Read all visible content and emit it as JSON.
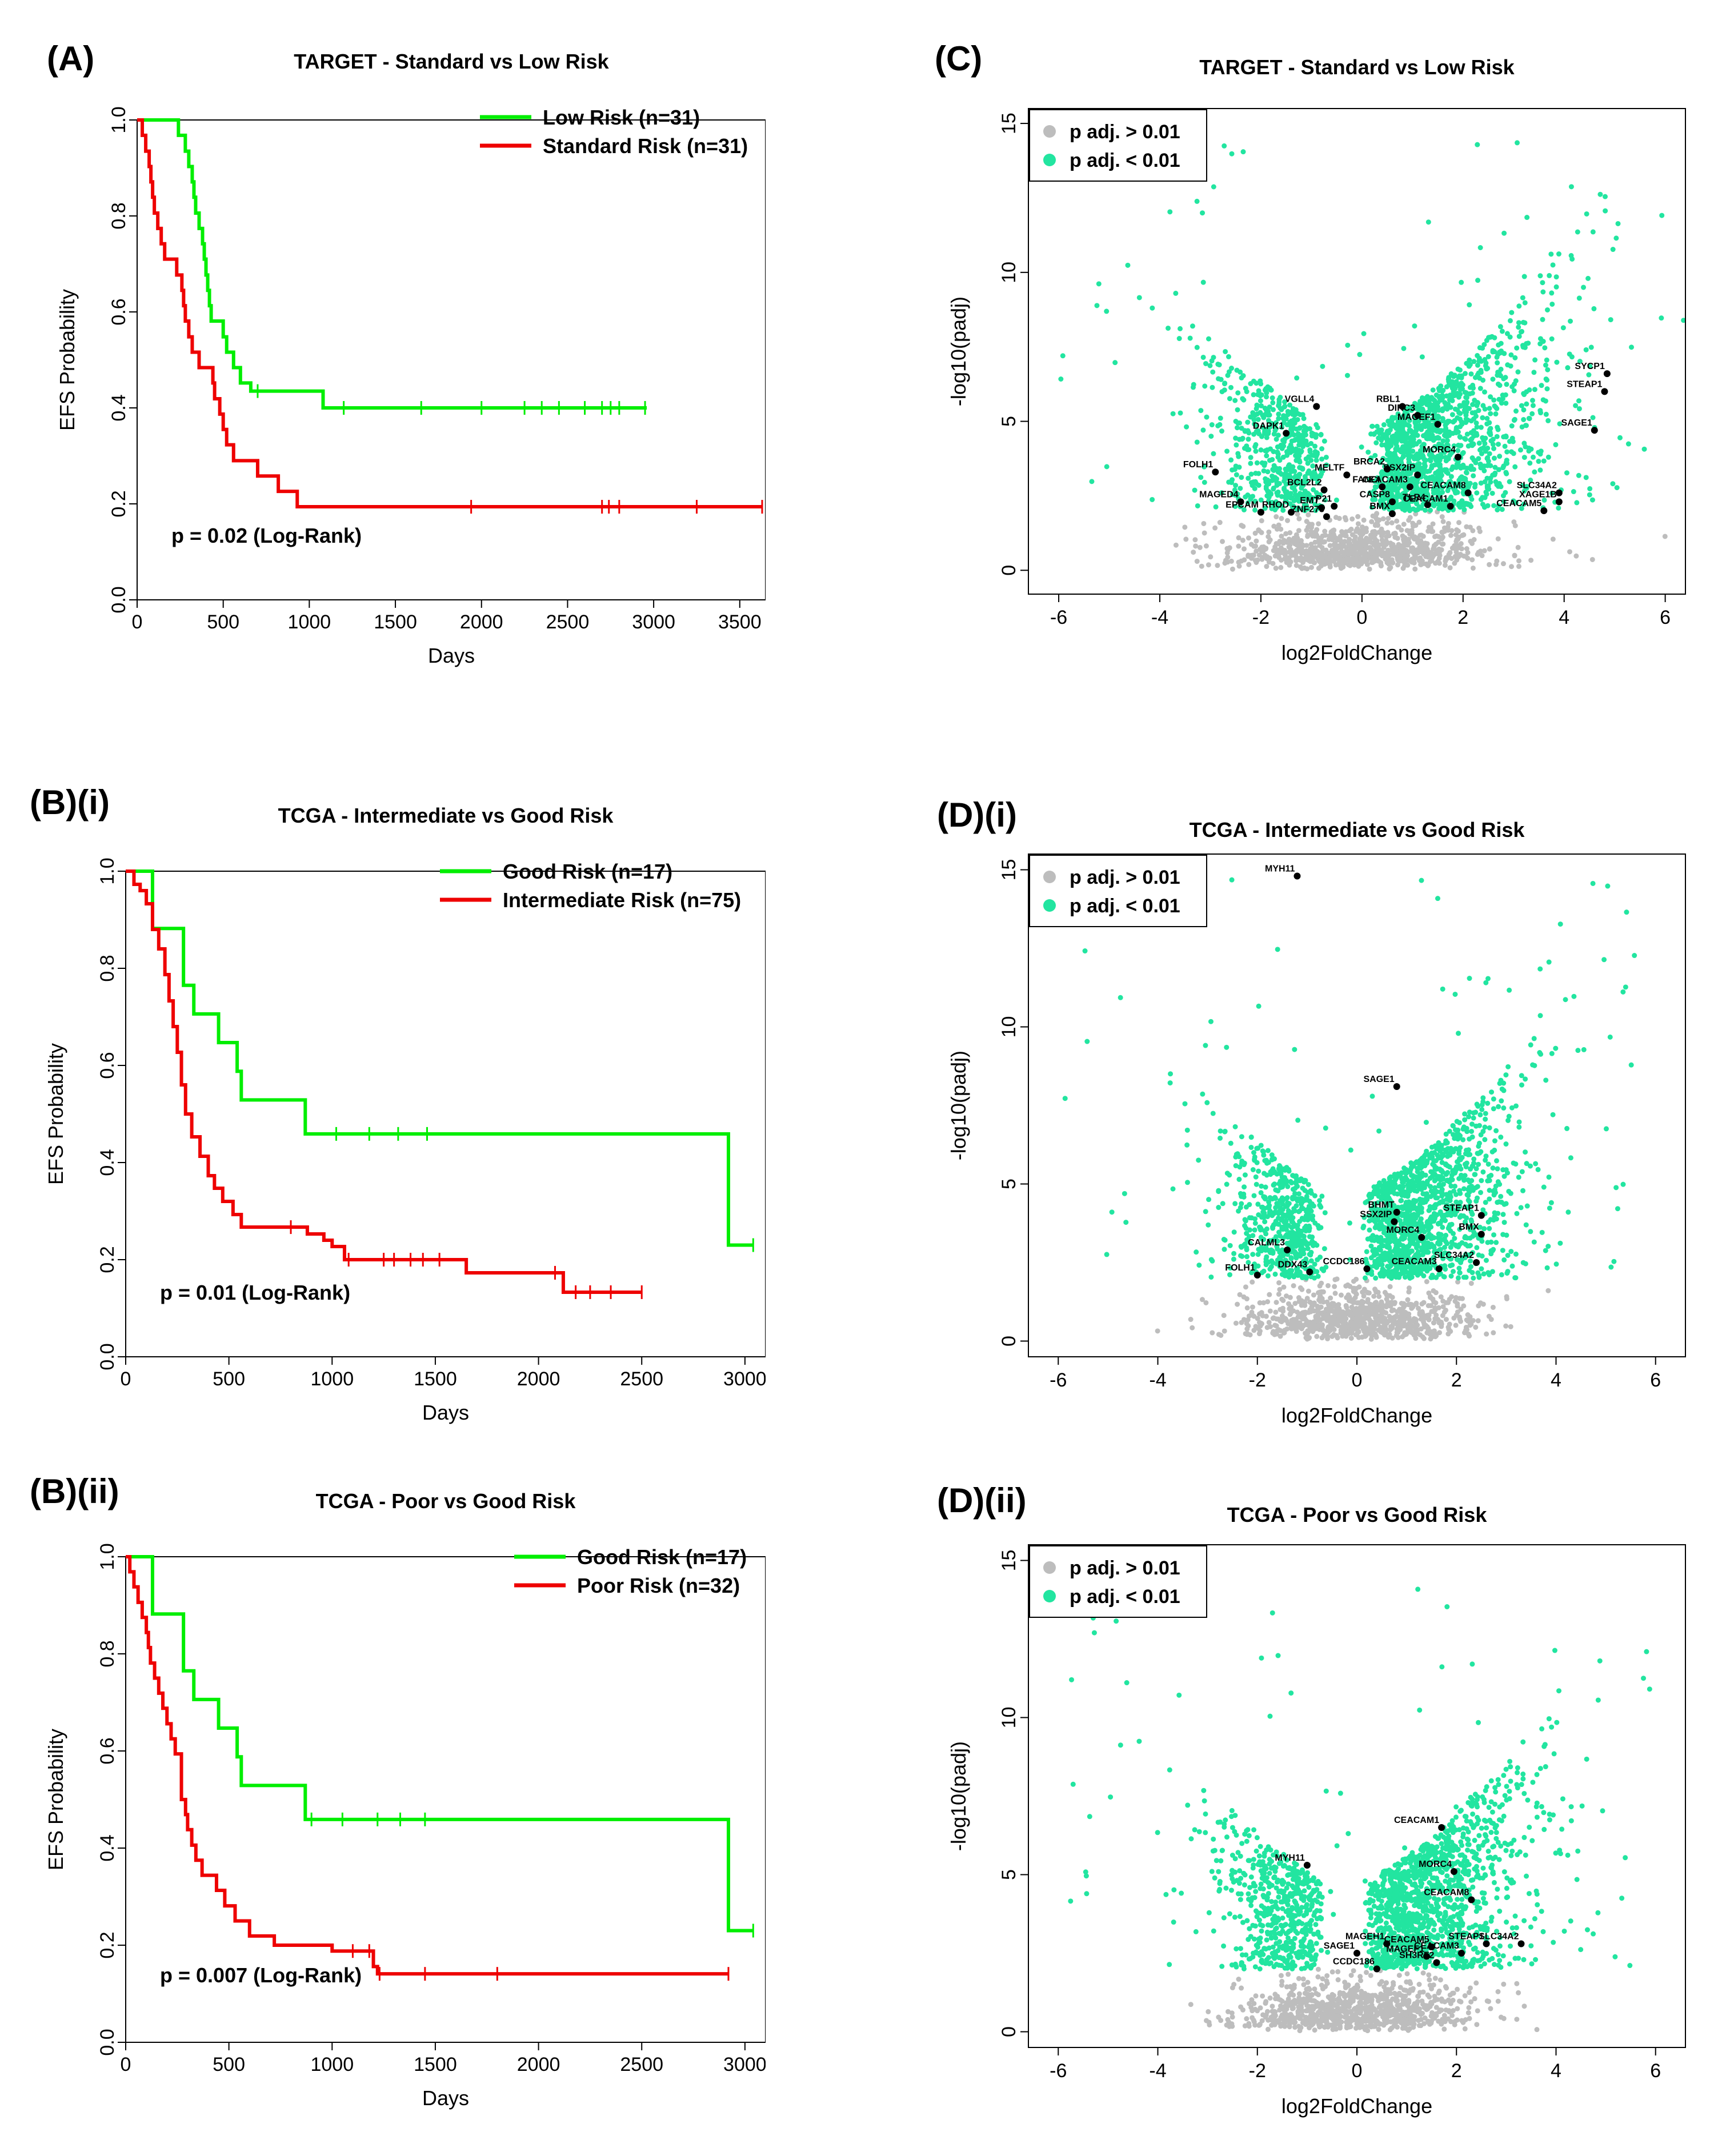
{
  "figure": {
    "panels": [
      {
        "label": "(A)"
      },
      {
        "label": "(C)"
      },
      {
        "label": "(B)(i)"
      },
      {
        "label": "(D)(i)"
      },
      {
        "label": "(B)(ii)"
      },
      {
        "label": "(D)(ii)"
      }
    ]
  },
  "colors": {
    "green": "#00ee00",
    "red": "#ee0000",
    "teal": "#22e5a0",
    "gray": "#bdbdbd",
    "black": "#000000"
  },
  "chart_data": [
    {
      "id": "A",
      "type": "line",
      "title": "TARGET - Standard vs Low Risk",
      "xlabel": "Days",
      "ylabel": "EFS Probability",
      "xlim": [
        0,
        3650
      ],
      "ylim": [
        0,
        1
      ],
      "xticks": [
        0,
        500,
        1000,
        1500,
        2000,
        2500,
        3000,
        3500
      ],
      "yticks": [
        0.0,
        0.2,
        0.4,
        0.6,
        0.8,
        1.0
      ],
      "ytick_labels": [
        "0.0",
        "0.2",
        "0.4",
        "0.6",
        "0.8",
        "1.0"
      ],
      "annotation": "p = 0.02 (Log-Rank)",
      "series": [
        {
          "name": "Low Risk (n=31)",
          "color": "#00ee00",
          "steps": [
            [
              0,
              1.0
            ],
            [
              120,
              1.0
            ],
            [
              240,
              0.968
            ],
            [
              280,
              0.935
            ],
            [
              300,
              0.903
            ],
            [
              320,
              0.871
            ],
            [
              330,
              0.839
            ],
            [
              340,
              0.806
            ],
            [
              360,
              0.774
            ],
            [
              380,
              0.742
            ],
            [
              390,
              0.71
            ],
            [
              400,
              0.677
            ],
            [
              410,
              0.645
            ],
            [
              420,
              0.613
            ],
            [
              430,
              0.581
            ],
            [
              500,
              0.548
            ],
            [
              520,
              0.516
            ],
            [
              560,
              0.484
            ],
            [
              600,
              0.452
            ],
            [
              660,
              0.435
            ],
            [
              1080,
              0.4
            ],
            [
              2960,
              0.4
            ]
          ],
          "censor": [
            700,
            1200,
            1650,
            2000,
            2250,
            2350,
            2450,
            2600,
            2700,
            2750,
            2800,
            2950
          ]
        },
        {
          "name": "Standard Risk (n=31)",
          "color": "#ee0000",
          "steps": [
            [
              0,
              1.0
            ],
            [
              30,
              0.968
            ],
            [
              50,
              0.935
            ],
            [
              70,
              0.903
            ],
            [
              80,
              0.871
            ],
            [
              90,
              0.839
            ],
            [
              100,
              0.806
            ],
            [
              120,
              0.774
            ],
            [
              140,
              0.742
            ],
            [
              160,
              0.71
            ],
            [
              230,
              0.677
            ],
            [
              260,
              0.645
            ],
            [
              270,
              0.613
            ],
            [
              280,
              0.581
            ],
            [
              300,
              0.548
            ],
            [
              320,
              0.516
            ],
            [
              360,
              0.484
            ],
            [
              440,
              0.452
            ],
            [
              450,
              0.419
            ],
            [
              480,
              0.387
            ],
            [
              500,
              0.355
            ],
            [
              520,
              0.323
            ],
            [
              560,
              0.29
            ],
            [
              700,
              0.258
            ],
            [
              820,
              0.226
            ],
            [
              930,
              0.194
            ],
            [
              3630,
              0.194
            ]
          ],
          "censor": [
            1940,
            2700,
            2740,
            2800,
            3250,
            3630
          ]
        }
      ]
    },
    {
      "id": "C",
      "type": "scatter",
      "title": "TARGET - Standard vs Low Risk",
      "xlabel": "log2FoldChange",
      "ylabel": "-log10(padj)",
      "xlim": [
        -6.6,
        6.4
      ],
      "ylim": [
        -0.8,
        15.5
      ],
      "xticks": [
        -6,
        -4,
        -2,
        0,
        2,
        4,
        6
      ],
      "yticks": [
        0,
        5,
        10,
        15
      ],
      "legend": [
        "p adj. > 0.01",
        "p adj. < 0.01"
      ],
      "seed": 11,
      "spread": 1.0,
      "labeled_genes": [
        {
          "name": "SYCP1",
          "x": 4.85,
          "y": 6.6
        },
        {
          "name": "STEAP1",
          "x": 4.8,
          "y": 6.0
        },
        {
          "name": "SAGE1",
          "x": 4.6,
          "y": 4.7
        },
        {
          "name": "SLC34A2",
          "x": 3.9,
          "y": 2.6
        },
        {
          "name": "XAGE1B",
          "x": 3.9,
          "y": 2.3
        },
        {
          "name": "CEACAM5",
          "x": 3.6,
          "y": 2.0
        },
        {
          "name": "CEACAM8",
          "x": 2.1,
          "y": 2.6
        },
        {
          "name": "CEACAM1",
          "x": 1.75,
          "y": 2.15
        },
        {
          "name": "RBL1",
          "x": 0.8,
          "y": 5.5
        },
        {
          "name": "DIRC3",
          "x": 1.1,
          "y": 5.2
        },
        {
          "name": "MAGEF1",
          "x": 1.5,
          "y": 4.9
        },
        {
          "name": "MORC4",
          "x": 1.9,
          "y": 3.8
        },
        {
          "name": "BRCA2",
          "x": 0.5,
          "y": 3.4
        },
        {
          "name": "SSX2IP",
          "x": 1.1,
          "y": 3.2
        },
        {
          "name": "FANCI",
          "x": 0.4,
          "y": 2.8
        },
        {
          "name": "CEACAM3",
          "x": 0.95,
          "y": 2.8
        },
        {
          "name": "CASP8",
          "x": 0.6,
          "y": 2.3
        },
        {
          "name": "TLR4",
          "x": 1.3,
          "y": 2.2
        },
        {
          "name": "BMX",
          "x": 0.6,
          "y": 1.9
        },
        {
          "name": "VGLL4",
          "x": -0.9,
          "y": 5.5
        },
        {
          "name": "DAPK1",
          "x": -1.5,
          "y": 4.6
        },
        {
          "name": "MELTF",
          "x": -0.3,
          "y": 3.2
        },
        {
          "name": "BCL2L2",
          "x": -0.75,
          "y": 2.7
        },
        {
          "name": "FOLH1",
          "x": -2.9,
          "y": 3.3
        },
        {
          "name": "MAGED4",
          "x": -2.4,
          "y": 2.3
        },
        {
          "name": "EPCAM",
          "x": -2.0,
          "y": 1.95
        },
        {
          "name": "RHOD",
          "x": -1.4,
          "y": 1.95
        },
        {
          "name": "EMT",
          "x": -0.8,
          "y": 2.1
        },
        {
          "name": "P21",
          "x": -0.55,
          "y": 2.15
        },
        {
          "name": "ZNF275",
          "x": -0.7,
          "y": 1.8
        }
      ]
    },
    {
      "id": "Bi",
      "type": "line",
      "title": "TCGA - Intermediate vs Good Risk",
      "xlabel": "Days",
      "ylabel": "EFS Probability",
      "xlim": [
        0,
        3100
      ],
      "ylim": [
        0,
        1
      ],
      "xticks": [
        0,
        500,
        1000,
        1500,
        2000,
        2500,
        3000
      ],
      "yticks": [
        0.0,
        0.2,
        0.4,
        0.6,
        0.8,
        1.0
      ],
      "ytick_labels": [
        "0.0",
        "0.2",
        "0.4",
        "0.6",
        "0.8",
        "1.0"
      ],
      "annotation": "p = 0.01 (Log-Rank)",
      "series": [
        {
          "name": "Good Risk (n=17)",
          "color": "#00ee00",
          "steps": [
            [
              0,
              1.0
            ],
            [
              130,
              0.882
            ],
            [
              280,
              0.765
            ],
            [
              330,
              0.706
            ],
            [
              450,
              0.647
            ],
            [
              540,
              0.588
            ],
            [
              560,
              0.529
            ],
            [
              870,
              0.459
            ],
            [
              2920,
              0.459
            ],
            [
              2920,
              0.23
            ],
            [
              3040,
              0.23
            ]
          ],
          "censor": [
            1020,
            1180,
            1320,
            1460,
            3040
          ]
        },
        {
          "name": "Intermediate Risk (n=75)",
          "color": "#ee0000",
          "steps": [
            [
              0,
              1.0
            ],
            [
              40,
              0.973
            ],
            [
              70,
              0.96
            ],
            [
              100,
              0.933
            ],
            [
              130,
              0.88
            ],
            [
              160,
              0.84
            ],
            [
              190,
              0.787
            ],
            [
              210,
              0.733
            ],
            [
              230,
              0.68
            ],
            [
              250,
              0.627
            ],
            [
              270,
              0.56
            ],
            [
              290,
              0.5
            ],
            [
              320,
              0.453
            ],
            [
              360,
              0.413
            ],
            [
              400,
              0.373
            ],
            [
              430,
              0.347
            ],
            [
              470,
              0.32
            ],
            [
              520,
              0.293
            ],
            [
              560,
              0.267
            ],
            [
              880,
              0.253
            ],
            [
              960,
              0.24
            ],
            [
              1000,
              0.227
            ],
            [
              1060,
              0.2
            ],
            [
              1650,
              0.173
            ],
            [
              2120,
              0.133
            ],
            [
              2500,
              0.133
            ]
          ],
          "censor": [
            800,
            1080,
            1250,
            1300,
            1380,
            1440,
            1520,
            2080,
            2180,
            2250,
            2350,
            2500
          ]
        }
      ]
    },
    {
      "id": "Di",
      "type": "scatter",
      "title": "TCGA - Intermediate vs Good Risk",
      "xlabel": "log2FoldChange",
      "ylabel": "-log10(padj)",
      "xlim": [
        -6.6,
        6.6
      ],
      "ylim": [
        -0.5,
        15.5
      ],
      "xticks": [
        -6,
        -4,
        -2,
        0,
        2,
        4,
        6
      ],
      "yticks": [
        0,
        5,
        10,
        15
      ],
      "legend": [
        "p adj. > 0.01",
        "p adj. < 0.01"
      ],
      "seed": 27,
      "spread": 0.85,
      "labeled_genes": [
        {
          "name": "MYH11",
          "x": -1.2,
          "y": 14.8
        },
        {
          "name": "SAGE1",
          "x": 0.8,
          "y": 8.1
        },
        {
          "name": "BHMT",
          "x": 0.8,
          "y": 4.1
        },
        {
          "name": "SSX2IP",
          "x": 0.75,
          "y": 3.8
        },
        {
          "name": "STEAP1",
          "x": 2.5,
          "y": 4.0
        },
        {
          "name": "BMX",
          "x": 2.5,
          "y": 3.4
        },
        {
          "name": "MORC4",
          "x": 1.3,
          "y": 3.3
        },
        {
          "name": "SLC34A2",
          "x": 2.4,
          "y": 2.5
        },
        {
          "name": "CEACAM3",
          "x": 1.65,
          "y": 2.3
        },
        {
          "name": "CCDC186",
          "x": 0.2,
          "y": 2.3
        },
        {
          "name": "DDX43",
          "x": -0.95,
          "y": 2.2
        },
        {
          "name": "CALML3",
          "x": -1.4,
          "y": 2.9
        },
        {
          "name": "FOLH1",
          "x": -2.0,
          "y": 2.1
        }
      ]
    },
    {
      "id": "Bii",
      "type": "line",
      "title": "TCGA - Poor vs Good Risk",
      "xlabel": "Days",
      "ylabel": "EFS Probability",
      "xlim": [
        0,
        3100
      ],
      "ylim": [
        0,
        1
      ],
      "xticks": [
        0,
        500,
        1000,
        1500,
        2000,
        2500,
        3000
      ],
      "yticks": [
        0.0,
        0.2,
        0.4,
        0.6,
        0.8,
        1.0
      ],
      "ytick_labels": [
        "0.0",
        "0.2",
        "0.4",
        "0.6",
        "0.8",
        "1.0"
      ],
      "annotation": "p = 0.007 (Log-Rank)",
      "series": [
        {
          "name": "Good Risk (n=17)",
          "color": "#00ee00",
          "steps": [
            [
              0,
              1.0
            ],
            [
              130,
              0.882
            ],
            [
              280,
              0.765
            ],
            [
              330,
              0.706
            ],
            [
              450,
              0.647
            ],
            [
              540,
              0.588
            ],
            [
              560,
              0.529
            ],
            [
              870,
              0.459
            ],
            [
              2920,
              0.459
            ],
            [
              2920,
              0.23
            ],
            [
              3040,
              0.23
            ]
          ],
          "censor": [
            900,
            1050,
            1220,
            1330,
            1450,
            3040
          ]
        },
        {
          "name": "Poor Risk (n=32)",
          "color": "#ee0000",
          "steps": [
            [
              0,
              1.0
            ],
            [
              20,
              0.969
            ],
            [
              40,
              0.938
            ],
            [
              60,
              0.906
            ],
            [
              80,
              0.875
            ],
            [
              100,
              0.844
            ],
            [
              110,
              0.813
            ],
            [
              120,
              0.781
            ],
            [
              140,
              0.75
            ],
            [
              160,
              0.719
            ],
            [
              180,
              0.688
            ],
            [
              200,
              0.656
            ],
            [
              220,
              0.625
            ],
            [
              240,
              0.594
            ],
            [
              270,
              0.5
            ],
            [
              290,
              0.469
            ],
            [
              300,
              0.438
            ],
            [
              320,
              0.406
            ],
            [
              340,
              0.375
            ],
            [
              370,
              0.344
            ],
            [
              440,
              0.313
            ],
            [
              480,
              0.281
            ],
            [
              530,
              0.25
            ],
            [
              600,
              0.219
            ],
            [
              720,
              0.2
            ],
            [
              1000,
              0.188
            ],
            [
              1200,
              0.156
            ],
            [
              1220,
              0.141
            ],
            [
              2920,
              0.141
            ]
          ],
          "censor": [
            1100,
            1180,
            1230,
            1450,
            1800,
            2920
          ]
        }
      ]
    },
    {
      "id": "Dii",
      "type": "scatter",
      "title": "TCGA - Poor vs Good Risk",
      "xlabel": "log2FoldChange",
      "ylabel": "-log10(padj)",
      "xlim": [
        -6.6,
        6.6
      ],
      "ylim": [
        -0.5,
        15.5
      ],
      "xticks": [
        -6,
        -4,
        -2,
        0,
        2,
        4,
        6
      ],
      "yticks": [
        0,
        5,
        10,
        15
      ],
      "legend": [
        "p adj. > 0.01",
        "p adj. < 0.01"
      ],
      "seed": 53,
      "spread": 0.9,
      "labeled_genes": [
        {
          "name": "CEACAM1",
          "x": 1.7,
          "y": 6.5
        },
        {
          "name": "MYH11",
          "x": -1.0,
          "y": 5.3
        },
        {
          "name": "MORC4",
          "x": 1.95,
          "y": 5.1
        },
        {
          "name": "CEACAM8",
          "x": 2.3,
          "y": 4.2
        },
        {
          "name": "MAGEH1",
          "x": 0.6,
          "y": 2.8
        },
        {
          "name": "CEACAM5",
          "x": 1.5,
          "y": 2.7
        },
        {
          "name": "STEAP1",
          "x": 2.6,
          "y": 2.8
        },
        {
          "name": "SLC34A2",
          "x": 3.3,
          "y": 2.8
        },
        {
          "name": "CEACAM3",
          "x": 2.1,
          "y": 2.5
        },
        {
          "name": "SAGE1",
          "x": 0.0,
          "y": 2.5
        },
        {
          "name": "MAGEF1",
          "x": 1.4,
          "y": 2.4
        },
        {
          "name": "SH3RF2",
          "x": 1.6,
          "y": 2.2
        },
        {
          "name": "CCDC186",
          "x": 0.4,
          "y": 2.0
        }
      ]
    }
  ]
}
